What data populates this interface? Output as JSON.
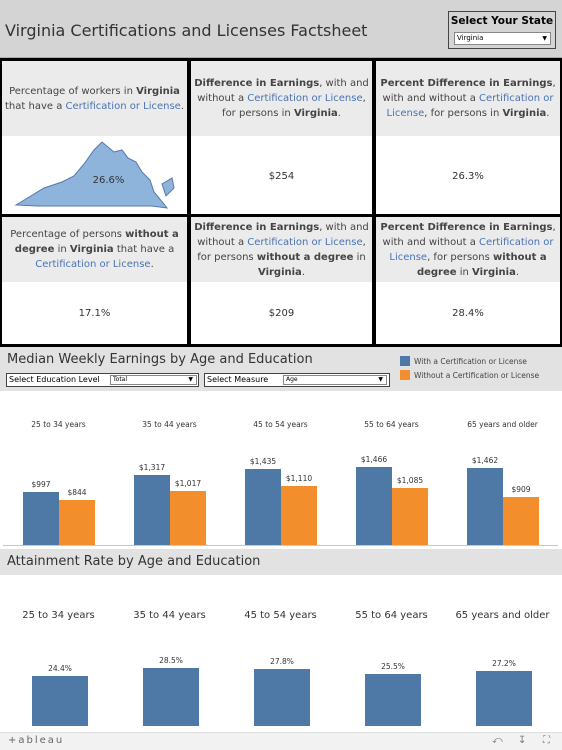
{
  "header": {
    "title": "Virginia Certifications and Licenses Factsheet",
    "state_label": "Select Your State",
    "state_value": "Virginia"
  },
  "factsheet": {
    "cells": [
      {
        "parts": [
          [
            "n",
            "Percentage of workers in "
          ],
          [
            "b",
            "Virginia"
          ],
          [
            "n",
            " that have a "
          ],
          [
            "c",
            "Certification or License"
          ],
          [
            "n",
            "."
          ]
        ],
        "value": "26.6%"
      },
      {
        "parts": [
          [
            "b",
            "Difference in Earnings"
          ],
          [
            "n",
            ", with and without a "
          ],
          [
            "c",
            "Certification or License"
          ],
          [
            "n",
            ", for persons in "
          ],
          [
            "b",
            "Virginia"
          ],
          [
            "n",
            "."
          ]
        ],
        "value": "$254"
      },
      {
        "parts": [
          [
            "b",
            "Percent Difference in Earnings"
          ],
          [
            "n",
            ", with and without a "
          ],
          [
            "c",
            "Certification or License"
          ],
          [
            "n",
            ", for persons in "
          ],
          [
            "b",
            "Virginia"
          ],
          [
            "n",
            "."
          ]
        ],
        "value": "26.3%"
      },
      {
        "parts": [
          [
            "n",
            "Percentage of persons "
          ],
          [
            "b",
            "without a degree"
          ],
          [
            "n",
            " in "
          ],
          [
            "b",
            "Virginia"
          ],
          [
            "n",
            " that have a "
          ],
          [
            "c",
            "Certification or License"
          ],
          [
            "n",
            "."
          ]
        ],
        "value": "17.1%"
      },
      {
        "parts": [
          [
            "b",
            "Difference in Earnings"
          ],
          [
            "n",
            ", with and without a "
          ],
          [
            "c",
            "Certification or License"
          ],
          [
            "n",
            ", for persons "
          ],
          [
            "b",
            "without a degree"
          ],
          [
            "n",
            " in "
          ],
          [
            "b",
            "Virginia"
          ],
          [
            "n",
            "."
          ]
        ],
        "value": "$209"
      },
      {
        "parts": [
          [
            "b",
            "Percent Difference in Earnings"
          ],
          [
            "n",
            ", with and without a "
          ],
          [
            "c",
            "Certification or License"
          ],
          [
            "n",
            ", for persons "
          ],
          [
            "b",
            "without a degree"
          ],
          [
            "n",
            " in "
          ],
          [
            "b",
            "Virginia"
          ],
          [
            "n",
            "."
          ]
        ],
        "value": "28.4%"
      }
    ]
  },
  "earnings": {
    "title": "Median Weekly Earnings by Age and Education",
    "legend": [
      "With a Certification or License",
      "Without a Certification or License"
    ],
    "education_label": "Select Education Level",
    "education_value": "Total",
    "measure_label": "Select Measure",
    "measure_value": "Age"
  },
  "attainment": {
    "title": "Attainment Rate by Age and Education"
  },
  "footer": {
    "logo": "+ableau"
  },
  "colors": {
    "with": "#4e79a7",
    "without": "#f28e2b"
  },
  "chart_data": [
    {
      "type": "bar",
      "title": "Median Weekly Earnings by Age and Education",
      "categories": [
        "25 to 34 years",
        "35 to 44 years",
        "45 to 54 years",
        "55 to 64 years",
        "65 years and older"
      ],
      "series": [
        {
          "name": "With a Certification or License",
          "values": [
            997,
            1317,
            1435,
            1466,
            1462
          ],
          "labels": [
            "$997",
            "$1,317",
            "$1,435",
            "$1,466",
            "$1,462"
          ]
        },
        {
          "name": "Without a Certification or License",
          "values": [
            844,
            1017,
            1110,
            1085,
            909
          ],
          "labels": [
            "$844",
            "$1,017",
            "$1,110",
            "$1,085",
            "$909"
          ]
        }
      ],
      "ylim": [
        0,
        1900
      ]
    },
    {
      "type": "bar",
      "title": "Attainment Rate by Age and Education",
      "categories": [
        "25 to 34 years",
        "35 to 44 years",
        "45 to 54 years",
        "55 to 64 years",
        "65 years and older"
      ],
      "series": [
        {
          "values": [
            24.4,
            28.5,
            27.8,
            25.5,
            27.2
          ],
          "labels": [
            "24.4%",
            "28.5%",
            "27.8%",
            "25.5%",
            "27.2%"
          ]
        }
      ],
      "ylim": [
        0,
        50
      ]
    }
  ]
}
